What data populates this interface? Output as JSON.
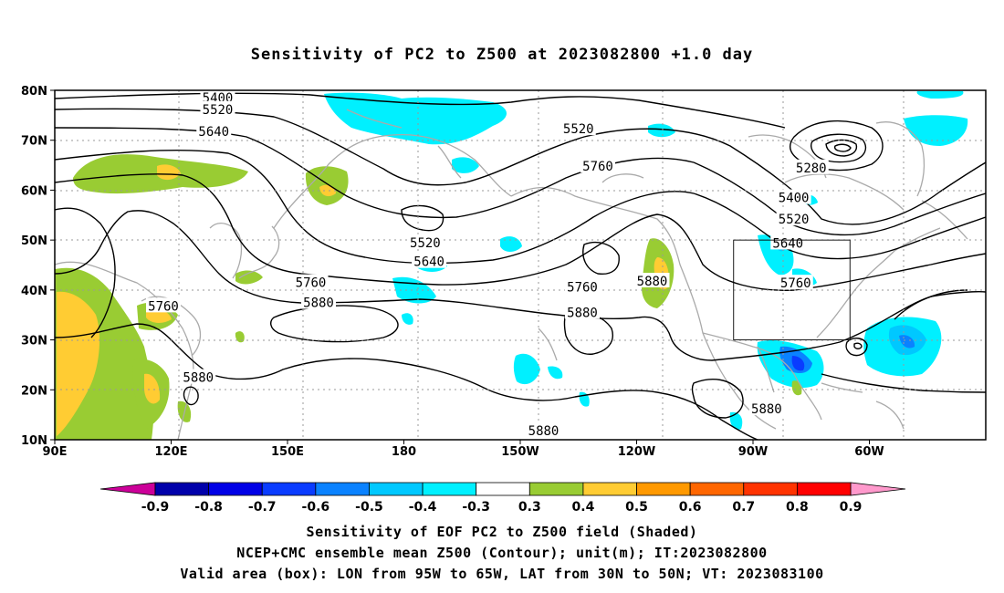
{
  "title": "Sensitivity of PC2 to Z500 at 2023082800 +1.0 day",
  "captions": {
    "line1": "Sensitivity of EOF PC2 to Z500 field (Shaded)",
    "line2": "NCEP+CMC ensemble mean Z500 (Contour); unit(m); IT:2023082800",
    "line3": "Valid area (box): LON from 95W to 65W, LAT from 30N to 50N; VT: 2023083100"
  },
  "map": {
    "lon_ticks": [
      "90E",
      "120E",
      "150E",
      "180",
      "150W",
      "120W",
      "90W",
      "60W"
    ],
    "lat_ticks": [
      "10N",
      "20N",
      "30N",
      "40N",
      "50N",
      "60N",
      "70N",
      "80N"
    ]
  },
  "contour_labels": [
    {
      "text": "5400",
      "lon": 132,
      "lat": 78.5
    },
    {
      "text": "5520",
      "lon": 132,
      "lat": 76.2
    },
    {
      "text": "5640",
      "lon": 131,
      "lat": 71.8
    },
    {
      "text": "5760",
      "lon": 118,
      "lat": 36.8
    },
    {
      "text": "5880",
      "lon": 127,
      "lat": 22.5
    },
    {
      "text": "5760",
      "lon": 156,
      "lat": 41.5
    },
    {
      "text": "5880",
      "lon": 158,
      "lat": 37.5
    },
    {
      "text": "5520",
      "lon": 185.5,
      "lat": 49.5
    },
    {
      "text": "5640",
      "lon": 186.5,
      "lat": 45.7
    },
    {
      "text": "5520",
      "lon": 225,
      "lat": 72.3
    },
    {
      "text": "5760",
      "lon": 230,
      "lat": 64.8
    },
    {
      "text": "5760",
      "lon": 226,
      "lat": 40.6
    },
    {
      "text": "5880",
      "lon": 226,
      "lat": 35.5
    },
    {
      "text": "5880",
      "lon": 244,
      "lat": 41.8
    },
    {
      "text": "5880",
      "lon": 216,
      "lat": 11.8
    },
    {
      "text": "5280",
      "lon": 285,
      "lat": 64.5
    },
    {
      "text": "5400",
      "lon": 280.5,
      "lat": 58.5
    },
    {
      "text": "5520",
      "lon": 280.5,
      "lat": 54.2
    },
    {
      "text": "5640",
      "lon": 279,
      "lat": 49.4
    },
    {
      "text": "5760",
      "lon": 281,
      "lat": 41.4
    },
    {
      "text": "5880",
      "lon": 273.5,
      "lat": 16.2
    }
  ],
  "valid_box": {
    "lon_min": 265,
    "lon_max": 295,
    "lat_min": 30,
    "lat_max": 50
  },
  "colorbar": {
    "labels": [
      "-0.9",
      "-0.8",
      "-0.7",
      "-0.6",
      "-0.5",
      "-0.4",
      "-0.3",
      "0.3",
      "0.4",
      "0.5",
      "0.6",
      "0.7",
      "0.8",
      "0.9"
    ],
    "colors": [
      "#0000aa",
      "#0000e6",
      "#0a3cff",
      "#0a82ff",
      "#00c8ff",
      "#00f0ff",
      "#ffffff",
      "#99cc33",
      "#ffcc33",
      "#ff9900",
      "#ff6600",
      "#ff3300",
      "#ff0000"
    ],
    "low_cap": "#cc0099",
    "high_cap": "#ff99cc"
  }
}
